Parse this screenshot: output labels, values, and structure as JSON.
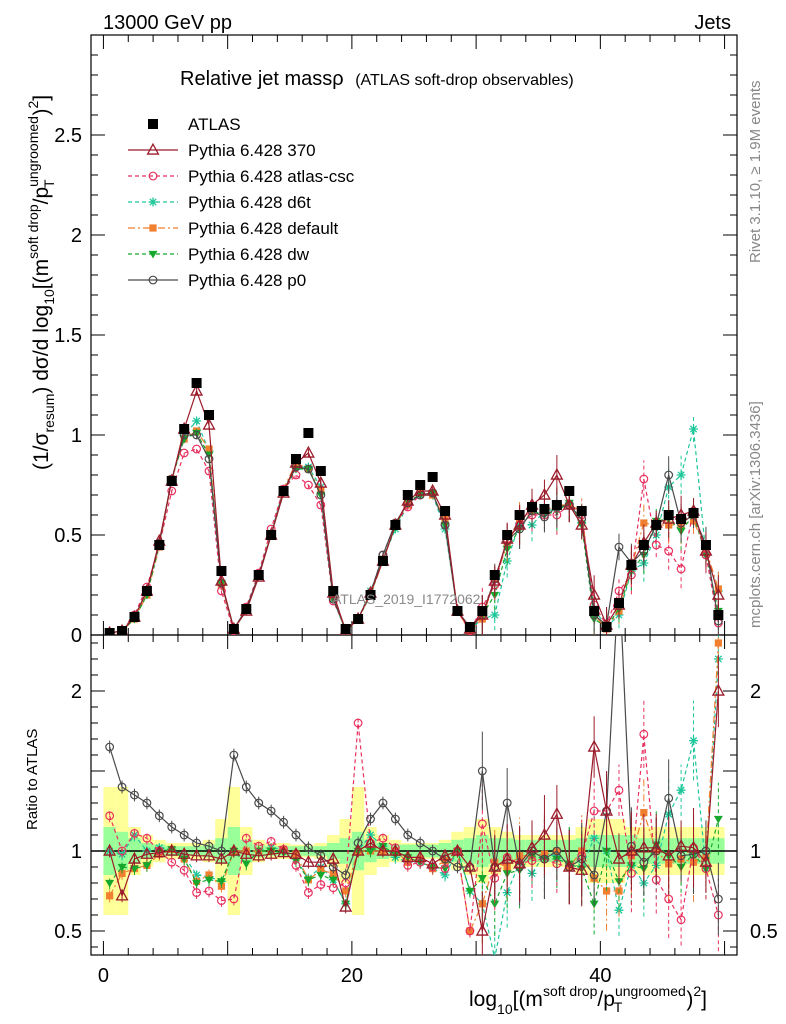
{
  "header": {
    "left": "13000 GeV pp",
    "right": "Jets"
  },
  "title_main": "Relative jet massρ",
  "title_sub": "(ATLAS soft-drop observables)",
  "side_top": "Rivet 3.1.10, ≥ 1.9M events",
  "side_bottom": "mcplots.cern.ch [arXiv:1306.3436]",
  "watermark": "ATLAS_2019_I1772062",
  "ylabel_main": "(1/σresum) dσ/d log10[(m soft drop/pT ungroomed)2]",
  "ylabel_ratio": "Ratio to ATLAS",
  "xlabel": "log10[(m soft drop/pT ungroomed)2]",
  "colors": {
    "atlas": "#000000",
    "p370": "#9b1b2a",
    "atlascsc": "#e8315f",
    "d6t": "#1ec79a",
    "default": "#f07f2f",
    "dw": "#15a82c",
    "p0": "#4a4a4a",
    "band_yellow": "#ffff99",
    "band_green": "#99ff99"
  },
  "chart_data": [
    {
      "type": "scatter",
      "title": "Relative jet massρ (ATLAS soft-drop observables)",
      "xlim": [
        -1,
        51
      ],
      "ylim": [
        0,
        3.0
      ],
      "yticks": [
        "0",
        "0.5",
        "1",
        "1.5",
        "2",
        "2.5"
      ],
      "legend_position": "top-left",
      "x": [
        0.5,
        1.5,
        2.5,
        3.5,
        4.5,
        5.5,
        6.5,
        7.5,
        8.5,
        9.5,
        10.5,
        11.5,
        12.5,
        13.5,
        14.5,
        15.5,
        16.5,
        17.5,
        18.5,
        19.5,
        20.5,
        21.5,
        22.5,
        23.5,
        24.5,
        25.5,
        26.5,
        27.5,
        28.5,
        29.5,
        30.5,
        31.5,
        32.5,
        33.5,
        34.5,
        35.5,
        36.5,
        37.5,
        38.5,
        39.5,
        40.5,
        41.5,
        42.5,
        43.5,
        44.5,
        45.5,
        46.5,
        47.5,
        48.5,
        49.5
      ],
      "series": [
        {
          "name": "ATLAS",
          "values": [
            0.01,
            0.02,
            0.09,
            0.22,
            0.45,
            0.77,
            1.03,
            1.26,
            1.1,
            0.32,
            0.03,
            0.13,
            0.3,
            0.5,
            0.72,
            0.88,
            1.01,
            0.82,
            0.22,
            0.03,
            0.08,
            0.2,
            0.37,
            0.55,
            0.7,
            0.75,
            0.79,
            0.62,
            0.12,
            0.04,
            0.12,
            0.3,
            0.5,
            0.6,
            0.64,
            0.63,
            0.65,
            0.72,
            0.62,
            0.12,
            0.04,
            0.16,
            0.35,
            0.45,
            0.55,
            0.6,
            0.58,
            0.61,
            0.45,
            0.1
          ]
        },
        {
          "name": "Pythia 6.428 370",
          "values": [
            0.01,
            0.02,
            0.09,
            0.22,
            0.47,
            0.77,
            1.03,
            1.22,
            1.05,
            0.27,
            0.03,
            0.12,
            0.29,
            0.5,
            0.71,
            0.86,
            0.91,
            0.76,
            0.21,
            0.02,
            0.08,
            0.21,
            0.37,
            0.55,
            0.67,
            0.72,
            0.72,
            0.6,
            0.12,
            0.03,
            0.1,
            0.27,
            0.48,
            0.55,
            0.65,
            0.7,
            0.8,
            0.65,
            0.55,
            0.2,
            0.05,
            0.15,
            0.35,
            0.46,
            0.56,
            0.58,
            0.6,
            0.62,
            0.42,
            0.2
          ]
        },
        {
          "name": "Pythia 6.428 atlas-csc",
          "values": [
            0.01,
            0.02,
            0.1,
            0.24,
            0.45,
            0.72,
            0.91,
            0.93,
            0.82,
            0.22,
            0.02,
            0.14,
            0.31,
            0.53,
            0.73,
            0.8,
            0.75,
            0.65,
            0.17,
            0.03,
            0.08,
            0.21,
            0.4,
            0.56,
            0.64,
            0.7,
            0.71,
            0.55,
            0.12,
            0.02,
            0.14,
            0.25,
            0.48,
            0.55,
            0.6,
            0.6,
            0.6,
            0.65,
            0.6,
            0.15,
            0.05,
            0.22,
            0.3,
            0.78,
            0.45,
            0.42,
            0.33,
            0.62,
            0.4,
            0.06
          ]
        },
        {
          "name": "Pythia 6.428 d6t",
          "values": [
            0.01,
            0.02,
            0.1,
            0.22,
            0.46,
            0.78,
            1.0,
            1.07,
            0.92,
            0.26,
            0.03,
            0.13,
            0.3,
            0.51,
            0.73,
            0.84,
            0.84,
            0.74,
            0.18,
            0.02,
            0.08,
            0.22,
            0.38,
            0.53,
            0.65,
            0.7,
            0.7,
            0.53,
            0.12,
            0.03,
            0.08,
            0.1,
            0.37,
            0.56,
            0.55,
            0.62,
            0.63,
            0.66,
            0.56,
            0.13,
            0.04,
            0.1,
            0.32,
            0.36,
            0.5,
            0.74,
            0.8,
            1.03,
            0.4,
            0.22
          ]
        },
        {
          "name": "Pythia 6.428 default",
          "values": [
            0.01,
            0.02,
            0.08,
            0.2,
            0.44,
            0.78,
            0.98,
            1.02,
            0.93,
            0.25,
            0.03,
            0.13,
            0.3,
            0.5,
            0.73,
            0.86,
            0.83,
            0.72,
            0.19,
            0.03,
            0.08,
            0.2,
            0.37,
            0.55,
            0.65,
            0.71,
            0.7,
            0.58,
            0.12,
            0.02,
            0.08,
            0.28,
            0.45,
            0.58,
            0.62,
            0.62,
            0.65,
            0.65,
            0.62,
            0.1,
            0.03,
            0.12,
            0.34,
            0.56,
            0.55,
            0.55,
            0.55,
            0.57,
            0.43,
            0.23
          ]
        },
        {
          "name": "Pythia 6.428 dw",
          "values": [
            0.01,
            0.02,
            0.08,
            0.2,
            0.45,
            0.78,
            0.98,
            1.01,
            0.9,
            0.26,
            0.03,
            0.12,
            0.3,
            0.5,
            0.71,
            0.83,
            0.83,
            0.7,
            0.18,
            0.02,
            0.08,
            0.2,
            0.38,
            0.54,
            0.67,
            0.7,
            0.71,
            0.55,
            0.12,
            0.03,
            0.1,
            0.2,
            0.43,
            0.53,
            0.62,
            0.6,
            0.62,
            0.66,
            0.55,
            0.08,
            0.04,
            0.13,
            0.32,
            0.4,
            0.57,
            0.58,
            0.52,
            0.6,
            0.4,
            0.12
          ]
        },
        {
          "name": "Pythia 6.428 p0",
          "values": [
            0.01,
            0.02,
            0.09,
            0.22,
            0.46,
            0.78,
            1.0,
            1.0,
            0.88,
            0.26,
            0.03,
            0.13,
            0.3,
            0.5,
            0.72,
            0.84,
            0.83,
            0.7,
            0.18,
            0.03,
            0.08,
            0.21,
            0.4,
            0.56,
            0.66,
            0.7,
            0.71,
            0.55,
            0.12,
            0.04,
            0.1,
            0.28,
            0.47,
            0.53,
            0.62,
            0.59,
            0.64,
            0.65,
            0.58,
            0.1,
            0.05,
            0.44,
            0.36,
            0.42,
            0.55,
            0.8,
            0.56,
            0.6,
            0.45,
            0.07
          ]
        }
      ]
    },
    {
      "type": "line",
      "title": "",
      "ylabel": "Ratio to ATLAS",
      "xlim": [
        -1,
        51
      ],
      "ylim": [
        0.35,
        2.35
      ],
      "yticks": [
        "0.5",
        "1",
        "2"
      ],
      "xticks": [
        "0",
        "20",
        "40"
      ],
      "x": [
        0.5,
        1.5,
        2.5,
        3.5,
        4.5,
        5.5,
        6.5,
        7.5,
        8.5,
        9.5,
        10.5,
        11.5,
        12.5,
        13.5,
        14.5,
        15.5,
        16.5,
        17.5,
        18.5,
        19.5,
        20.5,
        21.5,
        22.5,
        23.5,
        24.5,
        25.5,
        26.5,
        27.5,
        28.5,
        29.5,
        30.5,
        31.5,
        32.5,
        33.5,
        34.5,
        35.5,
        36.5,
        37.5,
        38.5,
        39.5,
        40.5,
        41.5,
        42.5,
        43.5,
        44.5,
        45.5,
        46.5,
        47.5,
        48.5,
        49.5
      ],
      "reference_line": 1,
      "uncertainty_band_outer": [
        0.6,
        0.6,
        0.85,
        0.9,
        0.93,
        0.95,
        0.95,
        0.95,
        0.93,
        0.8,
        0.6,
        0.85,
        0.93,
        0.95,
        0.95,
        0.96,
        0.96,
        0.95,
        0.9,
        0.8,
        0.6,
        0.85,
        0.9,
        0.93,
        0.95,
        0.95,
        0.95,
        0.93,
        0.88,
        0.85,
        0.8,
        0.85,
        0.88,
        0.9,
        0.9,
        0.9,
        0.9,
        0.9,
        0.85,
        0.8,
        0.8,
        0.8,
        0.85,
        0.85,
        0.85,
        0.85,
        0.85,
        0.85,
        0.85,
        0.85
      ],
      "uncertainty_band_inner": [
        0.85,
        0.88,
        0.92,
        0.95,
        0.96,
        0.97,
        0.97,
        0.97,
        0.96,
        0.92,
        0.85,
        0.93,
        0.96,
        0.97,
        0.97,
        0.97,
        0.97,
        0.97,
        0.95,
        0.92,
        0.88,
        0.93,
        0.95,
        0.96,
        0.96,
        0.96,
        0.96,
        0.95,
        0.93,
        0.92,
        0.9,
        0.92,
        0.92,
        0.93,
        0.93,
        0.93,
        0.93,
        0.93,
        0.92,
        0.9,
        0.9,
        0.9,
        0.9,
        0.92,
        0.92,
        0.92,
        0.92,
        0.92,
        0.92,
        0.92
      ],
      "series": [
        {
          "name": "Pythia 6.428 370",
          "values": [
            1.0,
            0.72,
            0.95,
            0.98,
            0.99,
            1.0,
            0.98,
            0.97,
            0.97,
            0.95,
            1.0,
            0.98,
            0.97,
            0.98,
            0.99,
            0.98,
            0.93,
            0.93,
            0.95,
            0.65,
            1.0,
            1.05,
            1.0,
            1.0,
            0.96,
            0.96,
            0.92,
            0.97,
            1.0,
            0.9,
            0.5,
            0.9,
            0.95,
            0.92,
            1.02,
            1.1,
            1.23,
            0.9,
            0.88,
            1.65,
            1.25,
            0.95,
            1.0,
            1.02,
            1.02,
            0.97,
            1.03,
            1.02,
            0.93,
            2.0
          ]
        },
        {
          "name": "Pythia 6.428 atlas-csc",
          "values": [
            1.22,
            1.0,
            1.11,
            1.08,
            1.0,
            0.93,
            0.88,
            0.74,
            0.75,
            0.69,
            0.7,
            1.08,
            1.03,
            1.06,
            1.01,
            0.91,
            0.74,
            0.79,
            0.77,
            0.8,
            1.8,
            1.05,
            1.08,
            1.02,
            0.91,
            0.93,
            0.9,
            0.89,
            1.0,
            0.5,
            1.17,
            0.83,
            0.96,
            0.92,
            0.94,
            0.95,
            0.92,
            0.9,
            0.97,
            1.25,
            1.25,
            1.38,
            0.86,
            1.73,
            0.82,
            0.7,
            0.57,
            1.02,
            0.89,
            0.6
          ]
        },
        {
          "name": "Pythia 6.428 d6t",
          "values": [
            1.0,
            0.98,
            1.1,
            1.0,
            1.02,
            1.01,
            0.97,
            0.85,
            0.84,
            0.81,
            1.0,
            1.0,
            1.0,
            1.02,
            1.01,
            0.95,
            0.83,
            0.9,
            0.82,
            0.67,
            1.0,
            1.1,
            1.03,
            0.96,
            0.93,
            0.93,
            0.89,
            0.85,
            1.0,
            0.75,
            0.67,
            0.33,
            0.74,
            0.93,
            0.86,
            0.98,
            0.97,
            0.92,
            0.9,
            1.08,
            1.0,
            0.63,
            0.91,
            0.8,
            0.91,
            1.23,
            1.38,
            1.69,
            0.89,
            2.2
          ]
        },
        {
          "name": "Pythia 6.428 default",
          "values": [
            0.72,
            0.86,
            0.89,
            0.91,
            0.98,
            1.01,
            0.95,
            0.81,
            0.85,
            0.78,
            1.0,
            1.0,
            1.0,
            1.0,
            1.01,
            0.98,
            0.82,
            0.88,
            0.86,
            0.75,
            1.0,
            1.0,
            1.0,
            1.0,
            0.93,
            0.95,
            0.89,
            0.94,
            1.0,
            0.5,
            0.67,
            0.93,
            0.9,
            0.97,
            0.97,
            0.98,
            1.0,
            0.9,
            1.0,
            0.83,
            0.75,
            0.75,
            0.97,
            1.24,
            1.0,
            0.92,
            0.95,
            0.93,
            0.96,
            2.3
          ]
        },
        {
          "name": "Pythia 6.428 dw",
          "values": [
            0.8,
            0.9,
            0.89,
            0.91,
            1.0,
            1.01,
            0.95,
            0.8,
            0.82,
            0.81,
            1.0,
            0.92,
            1.0,
            1.0,
            0.99,
            0.94,
            0.82,
            0.85,
            0.82,
            0.67,
            1.0,
            1.0,
            1.03,
            0.98,
            0.96,
            0.93,
            0.9,
            0.89,
            1.0,
            0.75,
            0.83,
            0.67,
            0.86,
            0.88,
            0.97,
            0.95,
            0.95,
            0.92,
            0.89,
            0.67,
            1.0,
            0.81,
            0.91,
            0.89,
            1.04,
            0.97,
            0.9,
            0.98,
            0.89,
            1.2
          ]
        },
        {
          "name": "Pythia 6.428 p0",
          "values": [
            1.65,
            1.4,
            1.35,
            1.3,
            1.22,
            1.15,
            1.1,
            1.05,
            1.03,
            1.0,
            1.6,
            1.4,
            1.3,
            1.25,
            1.18,
            1.1,
            1.02,
            0.97,
            0.9,
            0.85,
            1.05,
            1.2,
            1.3,
            1.2,
            1.1,
            1.05,
            1.0,
            0.95,
            0.9,
            0.9,
            1.5,
            0.9,
            1.3,
            0.9,
            1.0,
            0.95,
            1.0,
            0.9,
            0.95,
            0.85,
            1.25,
            2.75,
            1.03,
            0.93,
            1.0,
            1.33,
            0.97,
            0.98,
            1.0,
            0.7
          ]
        }
      ]
    }
  ]
}
